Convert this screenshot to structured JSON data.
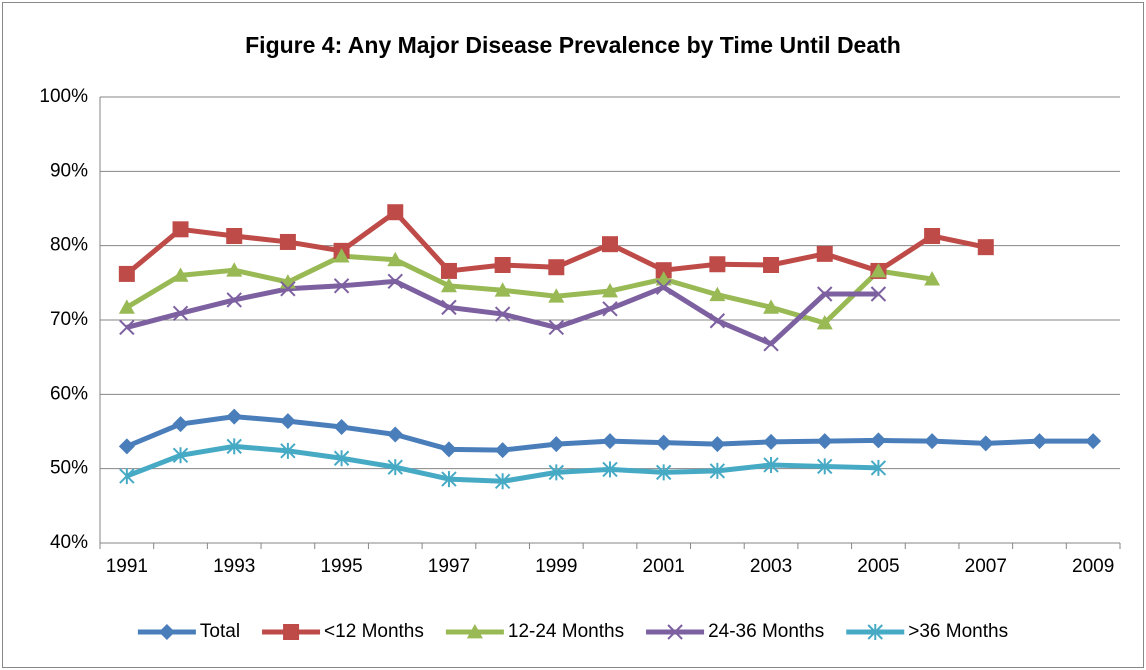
{
  "chart_data": {
    "type": "line",
    "title": "Figure 4: Any Major Disease Prevalence by Time Until Death",
    "categories": [
      "1991",
      null,
      "1993",
      null,
      "1995",
      null,
      "1997",
      null,
      "1999",
      null,
      "2001",
      null,
      "2003",
      null,
      "2005",
      null,
      "2007",
      null,
      "2009"
    ],
    "ylim": [
      40,
      100
    ],
    "yticks": [
      {
        "value": 40,
        "label": "40%"
      },
      {
        "value": 50,
        "label": "50%"
      },
      {
        "value": 60,
        "label": "60%"
      },
      {
        "value": 70,
        "label": "70%"
      },
      {
        "value": 80,
        "label": "80%"
      },
      {
        "value": 90,
        "label": "90%"
      },
      {
        "value": 100,
        "label": "100%"
      }
    ],
    "grid": true,
    "legend": "bottom",
    "series": [
      {
        "name": "Total",
        "color": "#4a7ebb",
        "marker": "diamond",
        "values": [
          53,
          56,
          57,
          56.4,
          55.6,
          54.6,
          52.6,
          52.5,
          53.3,
          53.7,
          53.5,
          53.3,
          53.6,
          53.7,
          53.8,
          53.7,
          53.4,
          53.7,
          53.7
        ]
      },
      {
        "name": "<12 Months",
        "color": "#be4b48",
        "marker": "square",
        "values": [
          76.2,
          82.2,
          81.3,
          80.5,
          79.3,
          84.5,
          76.6,
          77.4,
          77.1,
          80.2,
          76.7,
          77.5,
          77.4,
          78.9,
          76.6,
          81.3,
          79.8,
          null,
          null
        ]
      },
      {
        "name": "12-24 Months",
        "color": "#98b954",
        "marker": "triangle",
        "values": [
          71.7,
          76.0,
          76.7,
          75.1,
          78.6,
          78.1,
          74.6,
          74.0,
          73.2,
          73.9,
          75.5,
          73.4,
          71.7,
          69.6,
          76.6,
          75.5,
          null,
          null,
          null
        ]
      },
      {
        "name": "24-36 Months",
        "color": "#7d60a0",
        "marker": "x",
        "values": [
          69.0,
          70.9,
          72.7,
          74.2,
          74.6,
          75.2,
          71.7,
          70.8,
          69.0,
          71.5,
          74.4,
          69.9,
          66.8,
          73.5,
          73.5,
          null,
          null,
          null,
          null
        ]
      },
      {
        "name": ">36 Months",
        "color": "#46aac5",
        "marker": "asterisk",
        "values": [
          49.0,
          51.8,
          53.0,
          52.4,
          51.4,
          50.2,
          48.6,
          48.3,
          49.5,
          49.9,
          49.5,
          49.7,
          50.5,
          50.3,
          50.1,
          null,
          null,
          null,
          null
        ]
      }
    ]
  }
}
